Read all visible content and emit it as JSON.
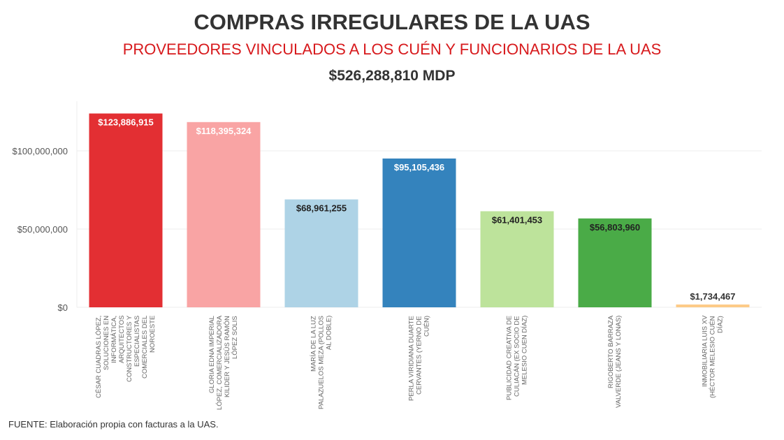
{
  "title": "COMPRAS IRREGULARES DE LA UAS",
  "subtitle": "PROVEEDORES VINCULADOS A LOS CUÉN Y FUNCIONARIOS DE LA UAS",
  "total": "$526,288,810 MDP",
  "source": "FUENTE: Elaboración propia con facturas a la UAS.",
  "chart_data": {
    "type": "bar",
    "ylim": [
      0,
      130000000
    ],
    "yticks": [
      0,
      50000000,
      100000000
    ],
    "ytick_labels": [
      "$0",
      "$50,000,000",
      "$100,000,000"
    ],
    "grid": true,
    "categories": [
      [
        "CÉSAR CUADRAS LÓPEZ,",
        "SOLUCIONES EN",
        "INFORMÁTICA,",
        "ARQUITECTOS",
        "CONSTRUCTORES Y",
        "ESPECIALISTAS",
        "COMERCIALES DEL",
        "NOROESTE"
      ],
      [
        "GLORIA EDNA IMPERIAL",
        "LÓPEZ, COMERCIALIZADORA",
        "KILIDER Y JESÚS RAMÓN",
        "LÓPEZ SOLIS"
      ],
      [
        "MARÍA DE LA LUZ",
        "PALAZUELOS MEZA (POLLOS",
        "AL DOBLE)"
      ],
      [
        "PERLA VIRIDIANA DUARTE",
        "CERVANTES (YERNO DE",
        "CUÉN)"
      ],
      [
        "PUBLICIDAD CREATIVA DE",
        "CULIACÁN (EX SOCIO DE",
        "MELESIO CUEN DÍAZ)"
      ],
      [
        "RIGOBERTO BARRAZA",
        "VALVERDE (JEANS Y LONAS)"
      ],
      [
        "INMOBILIARIA LUIS XV",
        "(HÉCTOR MELESIO CUÉN",
        "DÍAZ)"
      ]
    ],
    "values": [
      123886915,
      118395324,
      68961255,
      95105436,
      61401453,
      56803960,
      1734467
    ],
    "data_labels": [
      "$123,886,915",
      "$118,395,324",
      "$68,961,255",
      "$95,105,436",
      "$61,401,453",
      "$56,803,960",
      "$1,734,467"
    ],
    "colors": [
      "#e32f33",
      "#f9a4a4",
      "#aed3e6",
      "#3483bd",
      "#bde39b",
      "#4aab47",
      "#fdcb88"
    ],
    "label_colors": [
      "#ffffff",
      "#ffffff",
      "#222222",
      "#ffffff",
      "#222222",
      "#222222",
      "#222222"
    ]
  }
}
